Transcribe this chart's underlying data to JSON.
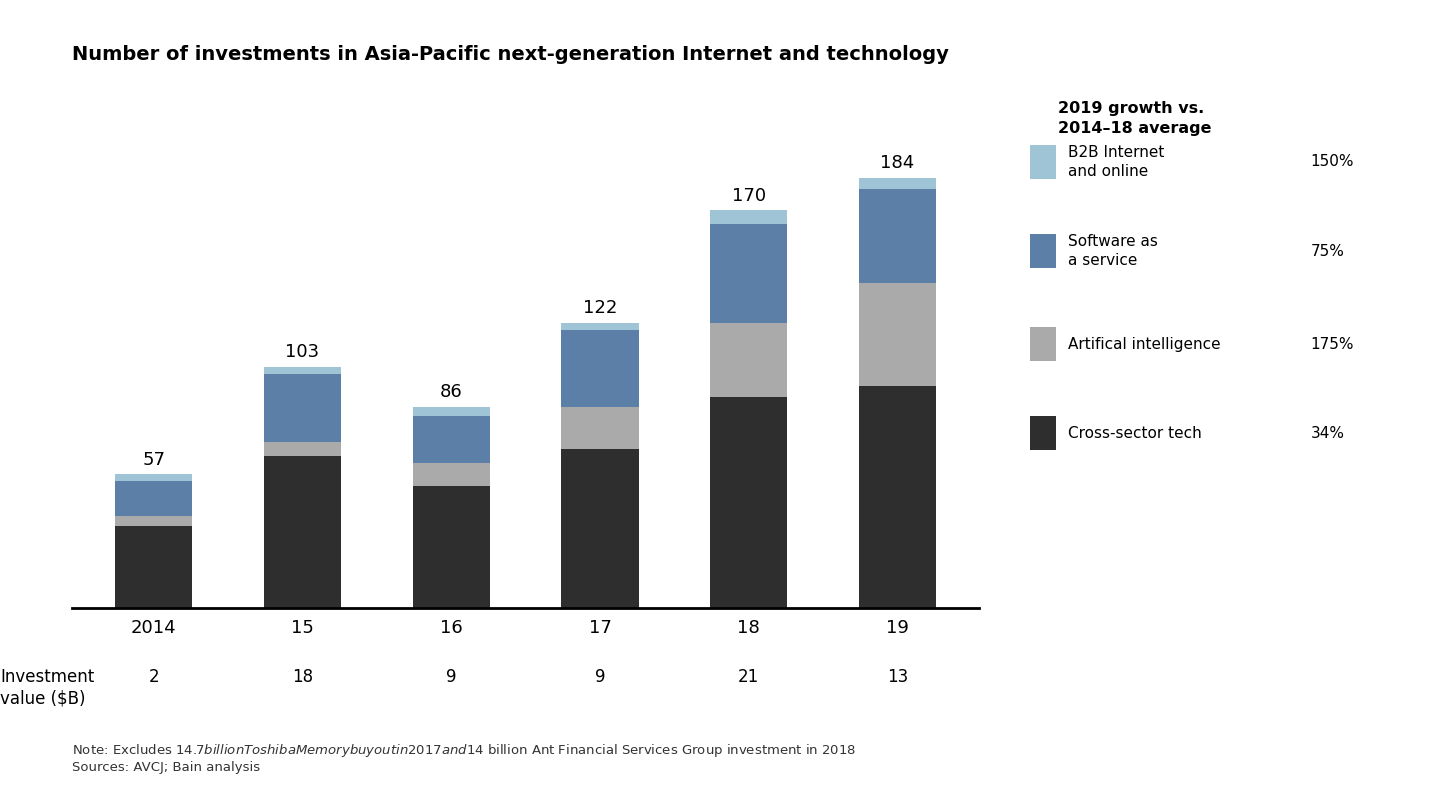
{
  "title": "Number of investments in Asia-Pacific next-generation Internet and technology",
  "years": [
    "2014",
    "15",
    "16",
    "17",
    "18",
    "19"
  ],
  "totals": [
    57,
    103,
    86,
    122,
    170,
    184
  ],
  "investment_values": [
    2,
    18,
    9,
    9,
    21,
    13
  ],
  "cross_sector": [
    35,
    65,
    52,
    68,
    90,
    95
  ],
  "ai": [
    4,
    6,
    10,
    18,
    32,
    44
  ],
  "saas": [
    15,
    29,
    20,
    33,
    42,
    40
  ],
  "b2b": [
    3,
    3,
    4,
    3,
    6,
    5
  ],
  "color_cross": "#2e2e2e",
  "color_ai": "#aaaaaa",
  "color_saas": "#5b7fa6",
  "color_b2b": "#9ec4d5",
  "legend_title": "2019 growth vs.\n2014–18 average",
  "legend_items": [
    "B2B Internet\nand online",
    "Software as\na service",
    "Artifical intelligence",
    "Cross-sector tech"
  ],
  "legend_pcts": [
    "150%",
    "75%",
    "175%",
    "34%"
  ],
  "note": "Note: Excludes $14.7 billion Toshiba Memory buyout in 2017 and $14 billion Ant Financial Services Group investment in 2018\nSources: AVCJ; Bain analysis",
  "inv_label": "Investment\nvalue ($B)",
  "background_color": "#ffffff"
}
